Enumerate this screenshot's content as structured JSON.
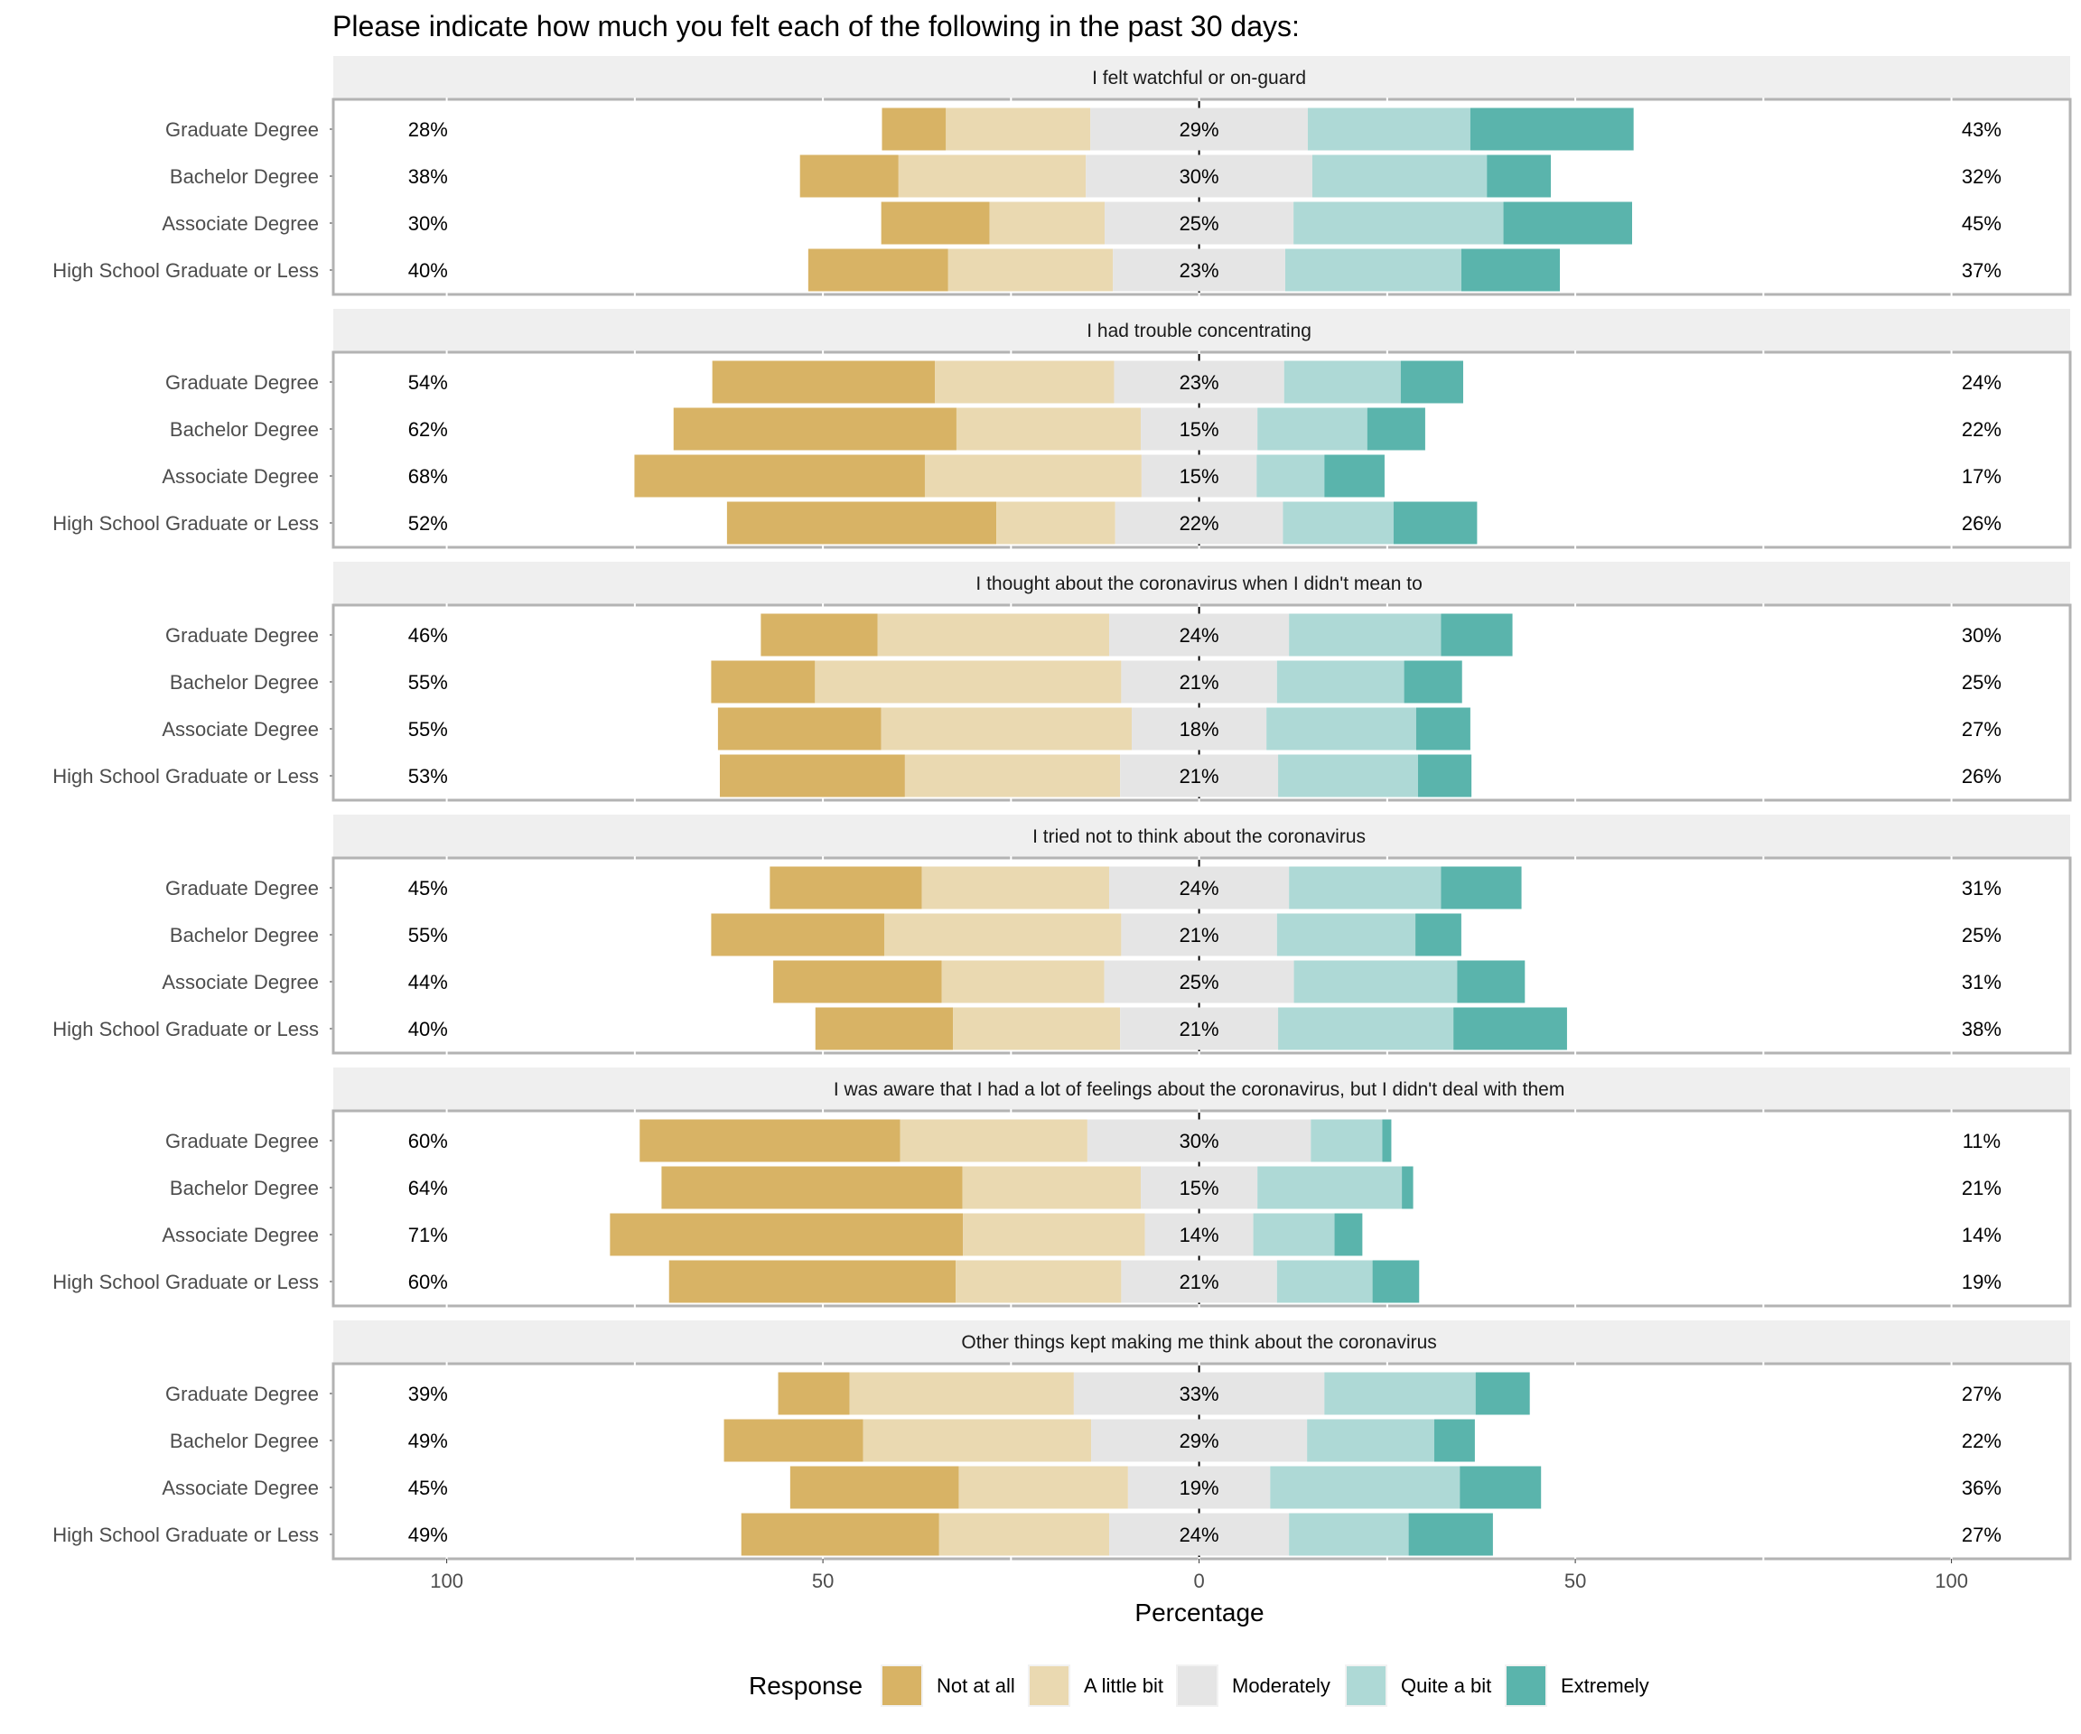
{
  "chart_data": {
    "type": "bar",
    "subtype": "diverging-stacked-horizontal",
    "title": "Please indicate how much you felt each of the following in the past 30 days:",
    "xlabel": "Percentage",
    "ylabel": "",
    "xlim": [
      -115,
      115
    ],
    "x_ticks": [
      -100,
      -50,
      0,
      50,
      100
    ],
    "x_tick_labels": [
      "100",
      "50",
      "0",
      "50",
      "100"
    ],
    "grid": false,
    "legend": {
      "title": "Response",
      "position": "bottom",
      "entries": [
        "Not at all",
        "A little bit",
        "Moderately",
        "Quite a bit",
        "Extremely"
      ]
    },
    "colors": {
      "Not at all": "#D8B365",
      "A little bit": "#EAD9B1",
      "Moderately": "#E5E5E5",
      "Quite a bit": "#AED9D6",
      "Extremely": "#5AB4AC"
    },
    "categories": [
      "Graduate Degree",
      "Bachelor Degree",
      "Associate Degree",
      "High School Graduate or Less"
    ],
    "panels": [
      {
        "title": "I felt watchful or on-guard",
        "rows": [
          {
            "group": "Graduate Degree",
            "values": [
              8.5,
              19.2,
              28.9,
              21.6,
              21.7
            ],
            "left_label": "28%",
            "center_label": "29%",
            "right_label": "43%"
          },
          {
            "group": "Bachelor Degree",
            "values": [
              13.1,
              24.9,
              30.1,
              23.2,
              8.5
            ],
            "left_label": "38%",
            "center_label": "30%",
            "right_label": "32%"
          },
          {
            "group": "Associate Degree",
            "values": [
              14.4,
              15.3,
              25.1,
              27.9,
              17.1
            ],
            "left_label": "30%",
            "center_label": "25%",
            "right_label": "45%"
          },
          {
            "group": "High School Graduate or Less",
            "values": [
              18.6,
              21.9,
              22.9,
              23.4,
              13.1
            ],
            "left_label": "40%",
            "center_label": "23%",
            "right_label": "37%"
          }
        ]
      },
      {
        "title": "I had trouble concentrating",
        "rows": [
          {
            "group": "Graduate Degree",
            "values": [
              29.6,
              23.8,
              22.6,
              15.5,
              8.3
            ],
            "left_label": "54%",
            "center_label": "23%",
            "right_label": "24%"
          },
          {
            "group": "Bachelor Degree",
            "values": [
              37.6,
              24.5,
              15.5,
              14.6,
              7.7
            ],
            "left_label": "62%",
            "center_label": "15%",
            "right_label": "22%"
          },
          {
            "group": "Associate Degree",
            "values": [
              38.6,
              28.8,
              15.3,
              9.0,
              8.0
            ],
            "left_label": "68%",
            "center_label": "15%",
            "right_label": "17%"
          },
          {
            "group": "High School Graduate or Less",
            "values": [
              35.8,
              15.8,
              22.3,
              14.7,
              11.1
            ],
            "left_label": "52%",
            "center_label": "22%",
            "right_label": "26%"
          }
        ]
      },
      {
        "title": "I thought about the coronavirus when I didn't mean to",
        "rows": [
          {
            "group": "Graduate Degree",
            "values": [
              15.5,
              30.8,
              23.9,
              20.2,
              9.5
            ],
            "left_label": "46%",
            "center_label": "24%",
            "right_label": "30%"
          },
          {
            "group": "Bachelor Degree",
            "values": [
              13.8,
              40.7,
              20.7,
              16.9,
              7.7
            ],
            "left_label": "55%",
            "center_label": "21%",
            "right_label": "25%"
          },
          {
            "group": "Associate Degree",
            "values": [
              21.7,
              33.3,
              17.9,
              19.9,
              7.2
            ],
            "left_label": "55%",
            "center_label": "18%",
            "right_label": "27%"
          },
          {
            "group": "High School Graduate or Less",
            "values": [
              24.6,
              28.6,
              21.0,
              18.6,
              7.1
            ],
            "left_label": "53%",
            "center_label": "21%",
            "right_label": "26%"
          }
        ]
      },
      {
        "title": "I tried not to think about the coronavirus",
        "rows": [
          {
            "group": "Graduate Degree",
            "values": [
              20.2,
              24.9,
              23.9,
              20.2,
              10.7
            ],
            "left_label": "45%",
            "center_label": "24%",
            "right_label": "31%"
          },
          {
            "group": "Bachelor Degree",
            "values": [
              23.0,
              31.5,
              20.7,
              18.4,
              6.1
            ],
            "left_label": "55%",
            "center_label": "21%",
            "right_label": "25%"
          },
          {
            "group": "Associate Degree",
            "values": [
              22.4,
              21.6,
              25.2,
              21.7,
              9.0
            ],
            "left_label": "44%",
            "center_label": "25%",
            "right_label": "31%"
          },
          {
            "group": "High School Graduate or Less",
            "values": [
              18.3,
              22.2,
              21.0,
              23.3,
              15.1
            ],
            "left_label": "40%",
            "center_label": "21%",
            "right_label": "38%"
          }
        ]
      },
      {
        "title": "I was aware that I had a lot of feelings about the coronavirus, but I didn't deal with them",
        "rows": [
          {
            "group": "Graduate Degree",
            "values": [
              34.6,
              24.9,
              29.7,
              9.5,
              1.2
            ],
            "left_label": "60%",
            "center_label": "30%",
            "right_label": "11%"
          },
          {
            "group": "Bachelor Degree",
            "values": [
              40.0,
              23.7,
              15.5,
              19.2,
              1.5
            ],
            "left_label": "64%",
            "center_label": "15%",
            "right_label": "21%"
          },
          {
            "group": "Associate Degree",
            "values": [
              46.9,
              24.2,
              14.4,
              10.8,
              3.7
            ],
            "left_label": "71%",
            "center_label": "14%",
            "right_label": "14%"
          },
          {
            "group": "High School Graduate or Less",
            "values": [
              38.1,
              22.0,
              20.7,
              12.7,
              6.2
            ],
            "left_label": "60%",
            "center_label": "21%",
            "right_label": "19%"
          }
        ]
      },
      {
        "title": "Other things kept making me think about the coronavirus",
        "rows": [
          {
            "group": "Graduate Degree",
            "values": [
              9.5,
              29.8,
              33.3,
              20.1,
              7.2
            ],
            "left_label": "39%",
            "center_label": "33%",
            "right_label": "27%"
          },
          {
            "group": "Bachelor Degree",
            "values": [
              18.5,
              30.3,
              28.7,
              16.9,
              5.4
            ],
            "left_label": "49%",
            "center_label": "29%",
            "right_label": "22%"
          },
          {
            "group": "Associate Degree",
            "values": [
              22.4,
              22.5,
              18.9,
              25.2,
              10.8
            ],
            "left_label": "45%",
            "center_label": "19%",
            "right_label": "36%"
          },
          {
            "group": "High School Graduate or Less",
            "values": [
              26.3,
              22.6,
              23.9,
              15.9,
              11.2
            ],
            "left_label": "49%",
            "center_label": "24%",
            "right_label": "27%"
          }
        ]
      }
    ]
  }
}
